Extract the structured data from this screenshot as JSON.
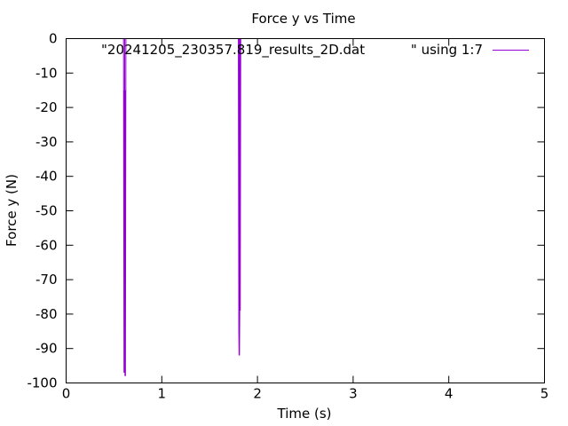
{
  "chart_data": {
    "type": "line",
    "title": "Force y vs Time",
    "xlabel": "Time (s)",
    "ylabel": "Force y (N)",
    "xlim": [
      0,
      5
    ],
    "ylim": [
      -100,
      0
    ],
    "xticks": [
      0,
      1,
      2,
      3,
      4,
      5
    ],
    "yticks": [
      0,
      -10,
      -20,
      -30,
      -40,
      -50,
      -60,
      -70,
      -80,
      -90,
      -100
    ],
    "grid": false,
    "legend_position": "top-right",
    "series": [
      {
        "name": "\"20241205_230357.819_results_2D.dat\" using 1:7",
        "legend_file": "\"20241205_230357.819_results_2D.dat",
        "legend_using": "\" using 1:7",
        "color": "#9400d3",
        "x": [
          0,
          0.6,
          0.605,
          0.608,
          0.61,
          0.612,
          0.615,
          0.618,
          0.62,
          0.625,
          0.63,
          1.8,
          1.805,
          1.808,
          1.81,
          1.812,
          1.815,
          1.818,
          1.82,
          1.825,
          5
        ],
        "y": [
          0,
          0,
          -97,
          -15,
          -97,
          0,
          -98,
          -15,
          -98,
          0,
          0,
          0,
          -85,
          -92,
          0,
          -92,
          -79,
          0,
          -79,
          0,
          0
        ]
      }
    ]
  }
}
